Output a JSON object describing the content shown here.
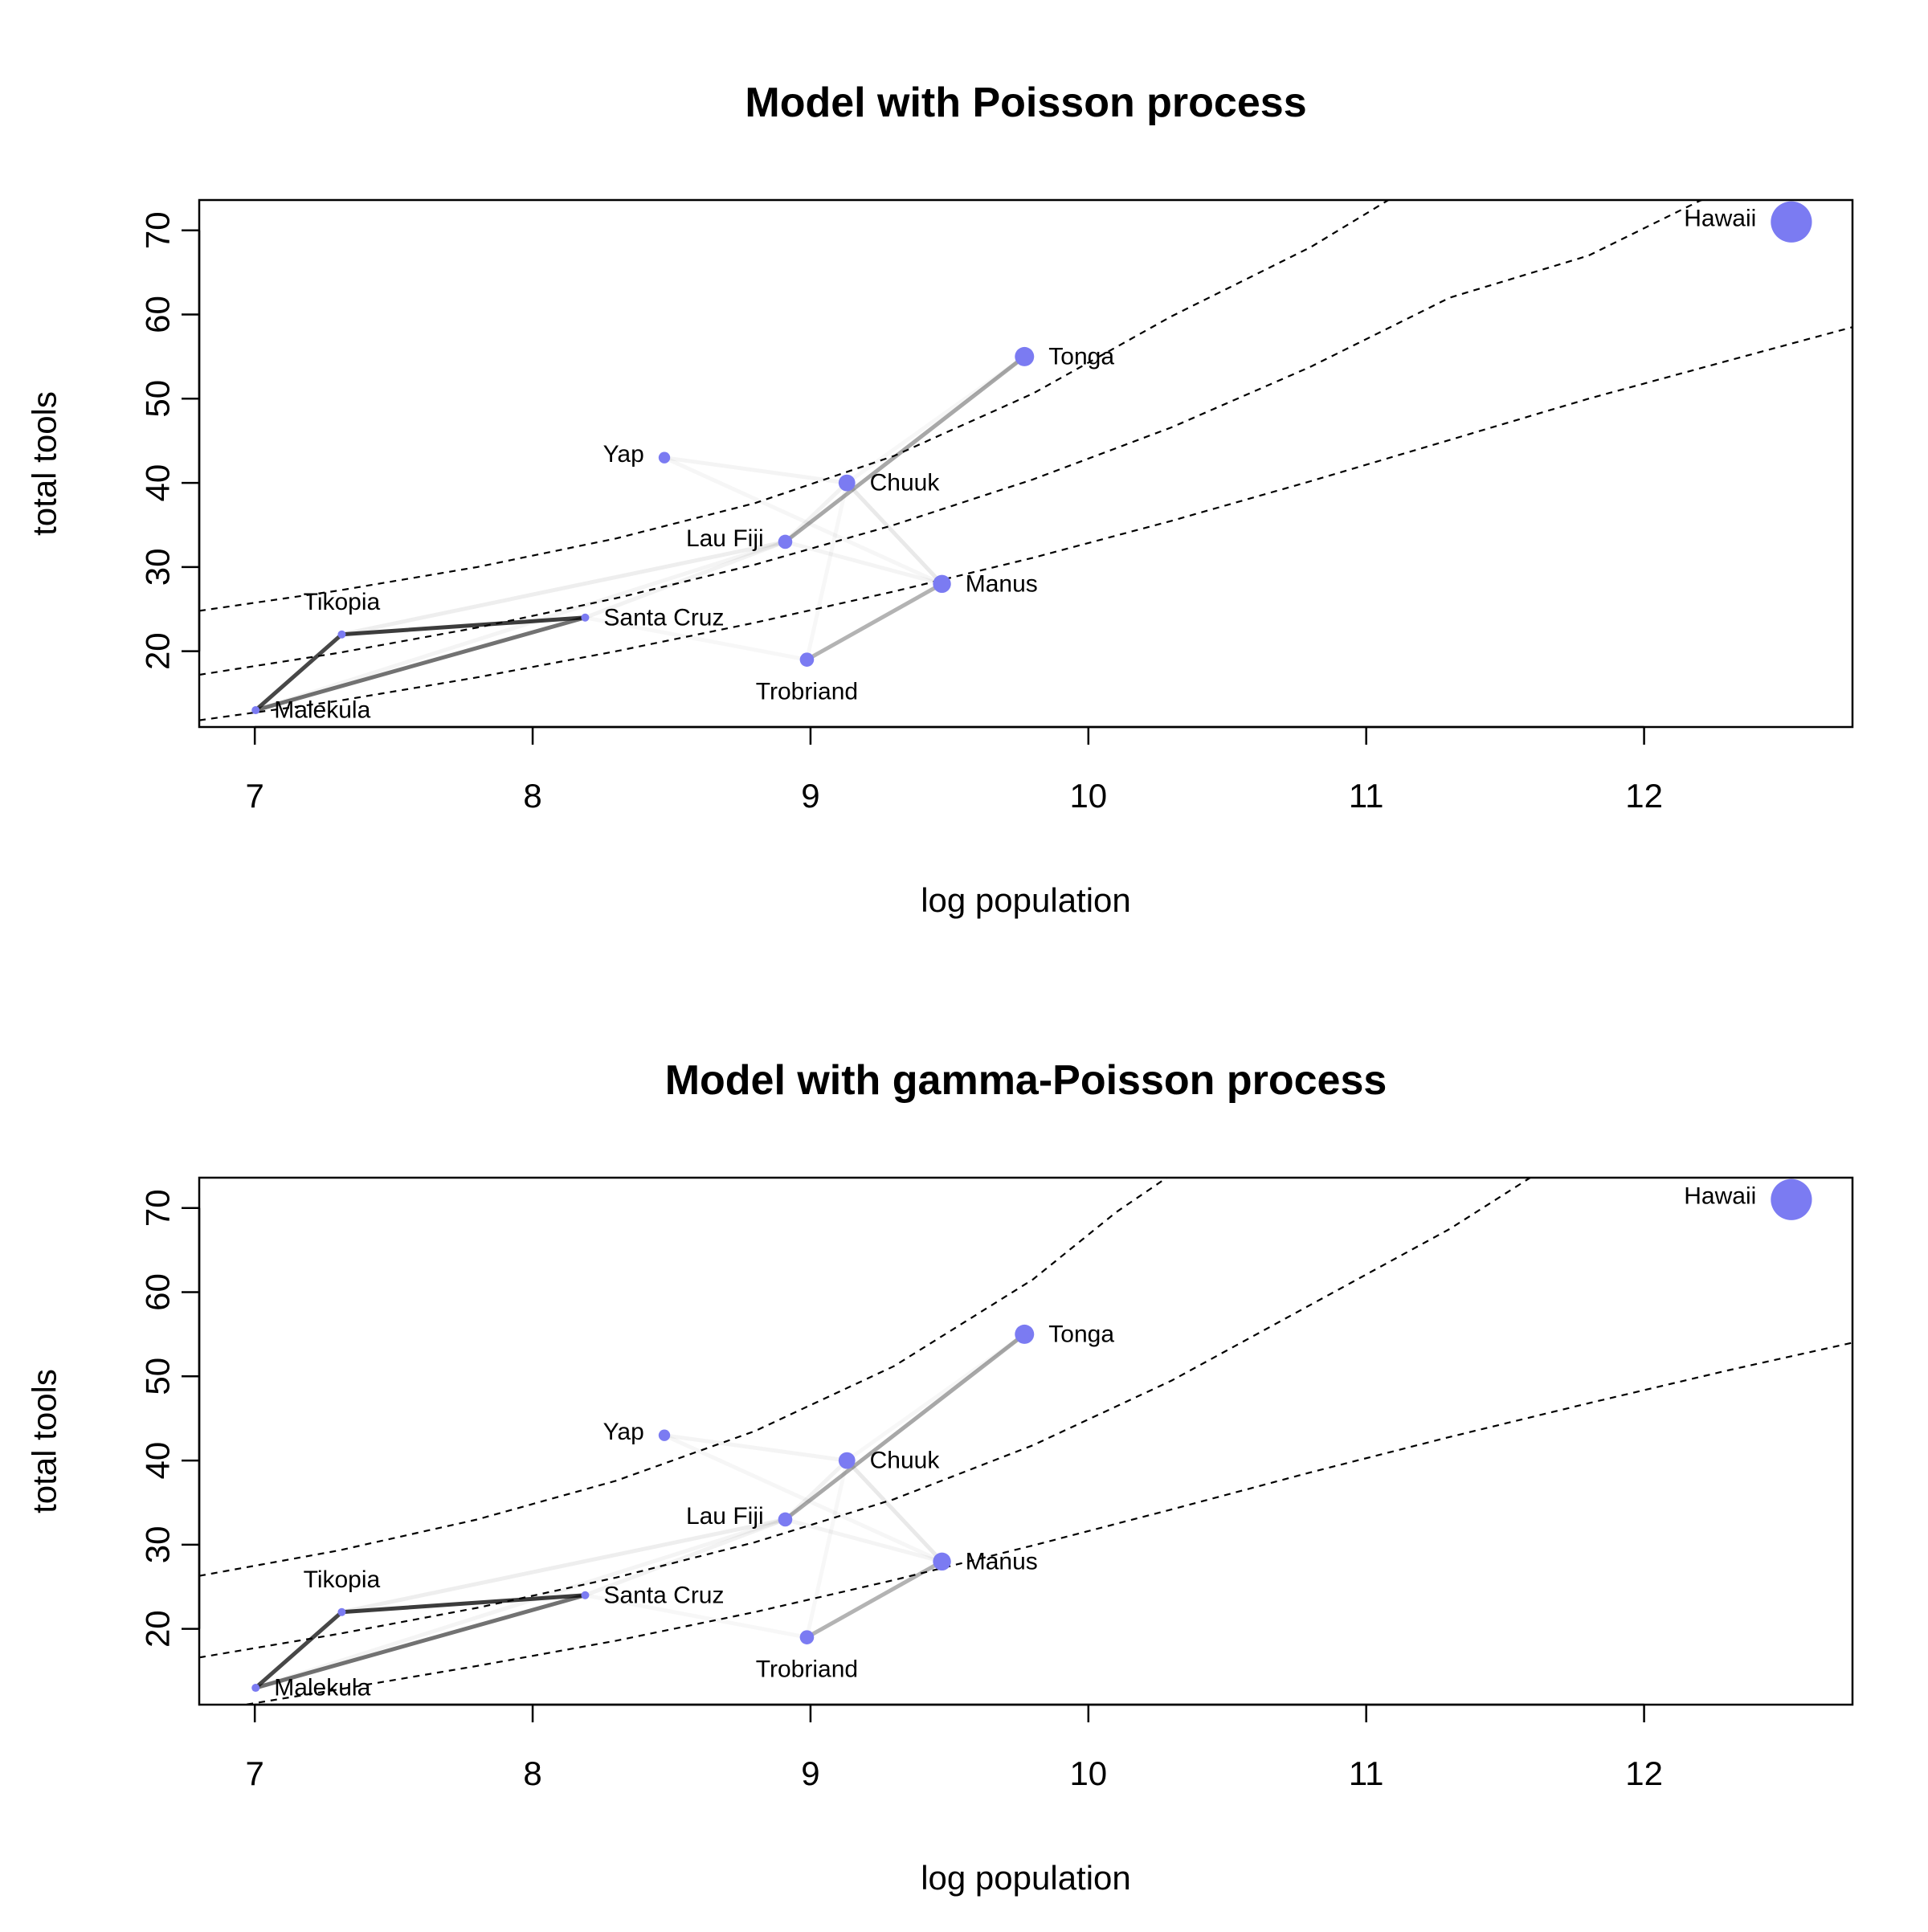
{
  "colors": {
    "point": "#7b7bf2",
    "curve": "#000000",
    "link": "#000000"
  },
  "chart_data": [
    {
      "type": "scatter",
      "title": "Model with Poisson process",
      "xlabel": "log population",
      "ylabel": "total tools",
      "xlim": [
        6.8,
        12.75
      ],
      "ylim": [
        11,
        73.6
      ],
      "xticks": [
        "7",
        "8",
        "9",
        "10",
        "11",
        "12"
      ],
      "yticks": [
        "20",
        "30",
        "40",
        "50",
        "60",
        "70"
      ],
      "grid": false,
      "points": [
        {
          "name": "Malekula",
          "x": 7.003,
          "y": 13,
          "size": 0.5,
          "label_pos": "right"
        },
        {
          "name": "Tikopia",
          "x": 7.313,
          "y": 22,
          "size": 0.5,
          "label_pos": "above"
        },
        {
          "name": "Santa Cruz",
          "x": 8.189,
          "y": 24,
          "size": 0.6,
          "label_pos": "right"
        },
        {
          "name": "Yap",
          "x": 8.474,
          "y": 43,
          "size": 0.9,
          "label_pos": "left"
        },
        {
          "name": "Lau Fiji",
          "x": 8.909,
          "y": 33,
          "size": 1.1,
          "label_pos": "left"
        },
        {
          "name": "Trobriand",
          "x": 8.987,
          "y": 19,
          "size": 1.1,
          "label_pos": "below"
        },
        {
          "name": "Chuuk",
          "x": 9.131,
          "y": 40,
          "size": 1.3,
          "label_pos": "right"
        },
        {
          "name": "Manus",
          "x": 9.473,
          "y": 28,
          "size": 1.4,
          "label_pos": "right"
        },
        {
          "name": "Tonga",
          "x": 9.77,
          "y": 55,
          "size": 1.5,
          "label_pos": "right"
        },
        {
          "name": "Hawaii",
          "x": 12.53,
          "y": 71,
          "size": 3.2,
          "label_pos": "left"
        }
      ],
      "links": [
        {
          "from": "Malekula",
          "to": "Tikopia",
          "strength": 0.85
        },
        {
          "from": "Tikopia",
          "to": "Santa Cruz",
          "strength": 0.9
        },
        {
          "from": "Malekula",
          "to": "Santa Cruz",
          "strength": 0.65
        },
        {
          "from": "Lau Fiji",
          "to": "Tonga",
          "strength": 0.4
        },
        {
          "from": "Trobriand",
          "to": "Manus",
          "strength": 0.35
        },
        {
          "from": "Tikopia",
          "to": "Lau Fiji",
          "strength": 0.08
        },
        {
          "from": "Santa Cruz",
          "to": "Lau Fiji",
          "strength": 0.06
        },
        {
          "from": "Malekula",
          "to": "Lau Fiji",
          "strength": 0.05
        },
        {
          "from": "Yap",
          "to": "Chuuk",
          "strength": 0.05
        },
        {
          "from": "Yap",
          "to": "Manus",
          "strength": 0.04
        },
        {
          "from": "Chuuk",
          "to": "Manus",
          "strength": 0.1
        },
        {
          "from": "Chuuk",
          "to": "Lau Fiji",
          "strength": 0.06
        },
        {
          "from": "Lau Fiji",
          "to": "Manus",
          "strength": 0.05
        },
        {
          "from": "Chuuk",
          "to": "Trobriand",
          "strength": 0.03
        },
        {
          "from": "Chuuk",
          "to": "Tonga",
          "strength": 0.03
        },
        {
          "from": "Santa Cruz",
          "to": "Trobriand",
          "strength": 0.03
        }
      ],
      "curves": [
        {
          "name": "upper",
          "points": [
            [
              6.8,
              24.8
            ],
            [
              7.3,
              27.2
            ],
            [
              7.8,
              30.0
            ],
            [
              8.3,
              33.4
            ],
            [
              8.8,
              37.6
            ],
            [
              9.3,
              43.2
            ],
            [
              9.8,
              50.6
            ],
            [
              10.3,
              59.8
            ],
            [
              10.8,
              68.0
            ],
            [
              11.0,
              72.0
            ],
            [
              11.2,
              76.0
            ]
          ]
        },
        {
          "name": "mean",
          "points": [
            [
              6.8,
              17.2
            ],
            [
              7.3,
              19.8
            ],
            [
              7.8,
              22.8
            ],
            [
              8.3,
              26.3
            ],
            [
              8.8,
              30.3
            ],
            [
              9.3,
              35.0
            ],
            [
              9.8,
              40.4
            ],
            [
              10.3,
              46.6
            ],
            [
              10.8,
              53.8
            ],
            [
              11.3,
              62.0
            ],
            [
              11.8,
              67.0
            ],
            [
              12.2,
              73.5
            ],
            [
              12.4,
              76.0
            ]
          ]
        },
        {
          "name": "lower",
          "points": [
            [
              6.8,
              11.8
            ],
            [
              7.3,
              14.1
            ],
            [
              7.8,
              16.9
            ],
            [
              8.3,
              20.0
            ],
            [
              8.8,
              23.4
            ],
            [
              9.3,
              27.1
            ],
            [
              9.8,
              31.1
            ],
            [
              10.3,
              35.5
            ],
            [
              10.8,
              40.2
            ],
            [
              11.3,
              45.1
            ],
            [
              11.8,
              50.0
            ],
            [
              12.3,
              54.5
            ],
            [
              12.75,
              58.5
            ]
          ]
        }
      ]
    },
    {
      "type": "scatter",
      "title": "Model with gamma-Poisson process",
      "xlabel": "log population",
      "ylabel": "total tools",
      "xlim": [
        6.8,
        12.75
      ],
      "ylim": [
        11,
        73.6
      ],
      "xticks": [
        "7",
        "8",
        "9",
        "10",
        "11",
        "12"
      ],
      "yticks": [
        "20",
        "30",
        "40",
        "50",
        "60",
        "70"
      ],
      "grid": false,
      "points": [
        {
          "name": "Malekula",
          "x": 7.003,
          "y": 13,
          "size": 0.5,
          "label_pos": "right"
        },
        {
          "name": "Tikopia",
          "x": 7.313,
          "y": 22,
          "size": 0.5,
          "label_pos": "above"
        },
        {
          "name": "Santa Cruz",
          "x": 8.189,
          "y": 24,
          "size": 0.6,
          "label_pos": "right"
        },
        {
          "name": "Yap",
          "x": 8.474,
          "y": 43,
          "size": 0.9,
          "label_pos": "left"
        },
        {
          "name": "Lau Fiji",
          "x": 8.909,
          "y": 33,
          "size": 1.1,
          "label_pos": "left"
        },
        {
          "name": "Trobriand",
          "x": 8.987,
          "y": 19,
          "size": 1.1,
          "label_pos": "below"
        },
        {
          "name": "Chuuk",
          "x": 9.131,
          "y": 40,
          "size": 1.3,
          "label_pos": "right"
        },
        {
          "name": "Manus",
          "x": 9.473,
          "y": 28,
          "size": 1.4,
          "label_pos": "right"
        },
        {
          "name": "Tonga",
          "x": 9.77,
          "y": 55,
          "size": 1.5,
          "label_pos": "right"
        },
        {
          "name": "Hawaii",
          "x": 12.53,
          "y": 71,
          "size": 3.2,
          "label_pos": "left"
        }
      ],
      "links": [
        {
          "from": "Malekula",
          "to": "Tikopia",
          "strength": 0.85
        },
        {
          "from": "Tikopia",
          "to": "Santa Cruz",
          "strength": 0.9
        },
        {
          "from": "Malekula",
          "to": "Santa Cruz",
          "strength": 0.65
        },
        {
          "from": "Lau Fiji",
          "to": "Tonga",
          "strength": 0.4
        },
        {
          "from": "Trobriand",
          "to": "Manus",
          "strength": 0.35
        },
        {
          "from": "Tikopia",
          "to": "Lau Fiji",
          "strength": 0.08
        },
        {
          "from": "Santa Cruz",
          "to": "Lau Fiji",
          "strength": 0.06
        },
        {
          "from": "Malekula",
          "to": "Lau Fiji",
          "strength": 0.05
        },
        {
          "from": "Yap",
          "to": "Chuuk",
          "strength": 0.05
        },
        {
          "from": "Yap",
          "to": "Manus",
          "strength": 0.04
        },
        {
          "from": "Chuuk",
          "to": "Manus",
          "strength": 0.1
        },
        {
          "from": "Chuuk",
          "to": "Lau Fiji",
          "strength": 0.06
        },
        {
          "from": "Lau Fiji",
          "to": "Manus",
          "strength": 0.05
        },
        {
          "from": "Chuuk",
          "to": "Trobriand",
          "strength": 0.03
        },
        {
          "from": "Chuuk",
          "to": "Tonga",
          "strength": 0.03
        },
        {
          "from": "Santa Cruz",
          "to": "Trobriand",
          "strength": 0.03
        }
      ],
      "curves": [
        {
          "name": "upper",
          "points": [
            [
              6.8,
              26.3
            ],
            [
              7.3,
              29.3
            ],
            [
              7.8,
              33.0
            ],
            [
              8.3,
              37.6
            ],
            [
              8.8,
              43.5
            ],
            [
              9.3,
              51.2
            ],
            [
              9.8,
              61.5
            ],
            [
              10.1,
              69.5
            ],
            [
              10.3,
              74.0
            ],
            [
              10.5,
              78.0
            ]
          ]
        },
        {
          "name": "mean",
          "points": [
            [
              6.8,
              16.6
            ],
            [
              7.3,
              19.4
            ],
            [
              7.8,
              22.5
            ],
            [
              8.3,
              26.1
            ],
            [
              8.8,
              30.3
            ],
            [
              9.3,
              35.4
            ],
            [
              9.8,
              41.8
            ],
            [
              10.3,
              49.5
            ],
            [
              10.8,
              58.5
            ],
            [
              11.3,
              67.5
            ],
            [
              11.6,
              73.8
            ],
            [
              11.7,
              76.0
            ]
          ]
        },
        {
          "name": "lower",
          "points": [
            [
              6.8,
              10.1
            ],
            [
              7.3,
              12.8
            ],
            [
              7.8,
              15.6
            ],
            [
              8.3,
              18.6
            ],
            [
              8.8,
              22.0
            ],
            [
              9.3,
              25.8
            ],
            [
              9.8,
              29.9
            ],
            [
              10.3,
              34.2
            ],
            [
              10.8,
              38.6
            ],
            [
              11.3,
              42.8
            ],
            [
              11.8,
              46.8
            ],
            [
              12.3,
              50.7
            ],
            [
              12.75,
              54.0
            ]
          ]
        }
      ]
    }
  ]
}
